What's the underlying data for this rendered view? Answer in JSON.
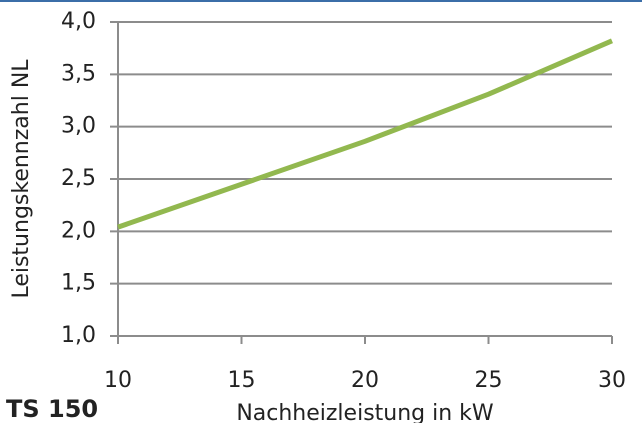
{
  "chart_data": {
    "type": "line",
    "title": "TS 150",
    "x_label": "Nachheizleistung in kW",
    "y_label": "Leistungskennzahl  NL",
    "x": [
      10,
      15,
      20,
      25,
      30
    ],
    "series": [
      {
        "name": "TS 150",
        "color": "#92b84f",
        "values": [
          2.04,
          2.45,
          2.86,
          3.31,
          3.82
        ]
      }
    ],
    "xlim": [
      10,
      30
    ],
    "xticks": [
      10,
      15,
      20,
      25,
      30
    ],
    "ylim": [
      1.0,
      4.0
    ],
    "yticks": [
      {
        "value": 1.0,
        "label": "1,0"
      },
      {
        "value": 1.5,
        "label": "1,5"
      },
      {
        "value": 2.0,
        "label": "2,0"
      },
      {
        "value": 2.5,
        "label": "2,5"
      },
      {
        "value": 3.0,
        "label": "3,0"
      },
      {
        "value": 3.5,
        "label": "3,5"
      },
      {
        "value": 4.0,
        "label": "4,0"
      }
    ],
    "grid": true
  }
}
